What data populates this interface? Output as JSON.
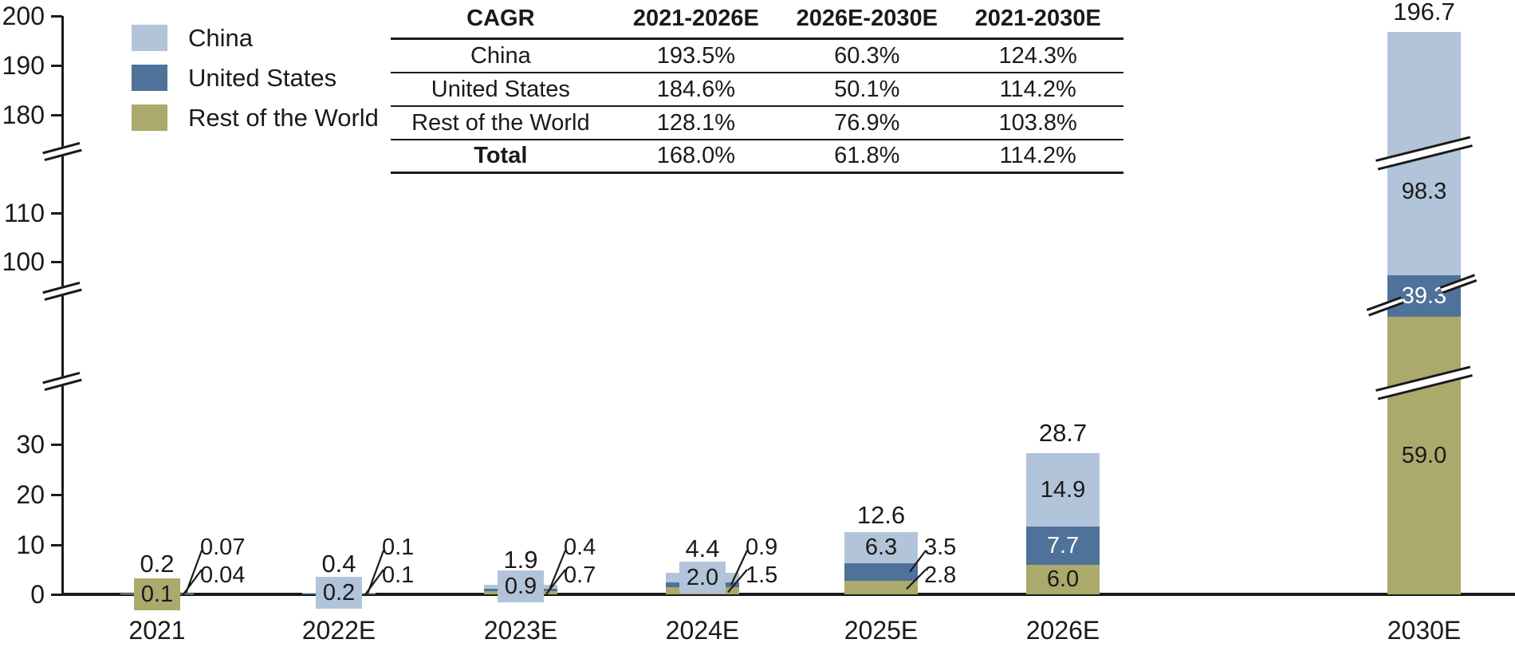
{
  "legend": {
    "items": [
      {
        "label": "China",
        "color": "#B2C4D9"
      },
      {
        "label": "United States",
        "color": "#4E7299"
      },
      {
        "label": "Rest of the World",
        "color": "#ABA96B"
      }
    ]
  },
  "cagr_table": {
    "col_headers": [
      "CAGR",
      "2021-2026E",
      "2026E-2030E",
      "2021-2030E"
    ],
    "rows": [
      {
        "label": "China",
        "v1": "193.5%",
        "v2": "60.3%",
        "v3": "124.3%"
      },
      {
        "label": "United States",
        "v1": "184.6%",
        "v2": "50.1%",
        "v3": "114.2%"
      },
      {
        "label": "Rest of the World",
        "v1": "128.1%",
        "v2": "76.9%",
        "v3": "103.8%"
      },
      {
        "label": "Total",
        "v1": "168.0%",
        "v2": "61.8%",
        "v3": "114.2%"
      }
    ]
  },
  "chart_data": {
    "type": "bar",
    "stacked": true,
    "categories": [
      "2021",
      "2022E",
      "2023E",
      "2024E",
      "2025E",
      "2026E",
      "2030E"
    ],
    "series": [
      {
        "name": "China",
        "color": "#B2C4D9",
        "values": [
          0.07,
          0.2,
          0.9,
          2.0,
          6.3,
          14.9,
          98.3
        ]
      },
      {
        "name": "United States",
        "color": "#4E7299",
        "values": [
          0.04,
          0.1,
          0.4,
          0.9,
          3.5,
          7.7,
          39.3
        ]
      },
      {
        "name": "Rest of the World",
        "color": "#ABA96B",
        "values": [
          0.1,
          0.1,
          0.7,
          1.5,
          2.8,
          6.0,
          59.0
        ]
      }
    ],
    "totals": [
      "0.2",
      "0.4",
      "1.9",
      "4.4",
      "12.6",
      "28.7",
      "196.7"
    ],
    "y_ticks": [
      0,
      10,
      20,
      30,
      100,
      110,
      180,
      190,
      200
    ],
    "y_axis_has_breaks": true,
    "y_axis_break_count": 3,
    "legend_position": "top-left",
    "bar_labels": [
      [
        {
          "text": "0.07",
          "style": "callout"
        },
        {
          "text": "0.04",
          "style": "callout"
        },
        {
          "text": "0.1",
          "style": "box"
        }
      ],
      [
        {
          "text": "0.2",
          "style": "box"
        },
        {
          "text": "0.1",
          "style": "callout"
        },
        {
          "text": "0.1",
          "style": "callout"
        }
      ],
      [
        {
          "text": "0.9",
          "style": "box"
        },
        {
          "text": "0.4",
          "style": "callout"
        },
        {
          "text": "0.7",
          "style": "callout"
        }
      ],
      [
        {
          "text": "2.0",
          "style": "box"
        },
        {
          "text": "0.9",
          "style": "callout"
        },
        {
          "text": "1.5",
          "style": "callout"
        }
      ],
      [
        {
          "text": "6.3",
          "style": "inside"
        },
        {
          "text": "3.5",
          "style": "callout"
        },
        {
          "text": "2.8",
          "style": "callout"
        }
      ],
      [
        {
          "text": "14.9",
          "style": "inside"
        },
        {
          "text": "7.7",
          "style": "inside-white"
        },
        {
          "text": "6.0",
          "style": "inside"
        }
      ],
      [
        {
          "text": "98.3",
          "style": "inside"
        },
        {
          "text": "39.3",
          "style": "inside-white"
        },
        {
          "text": "59.0",
          "style": "inside"
        }
      ]
    ]
  }
}
